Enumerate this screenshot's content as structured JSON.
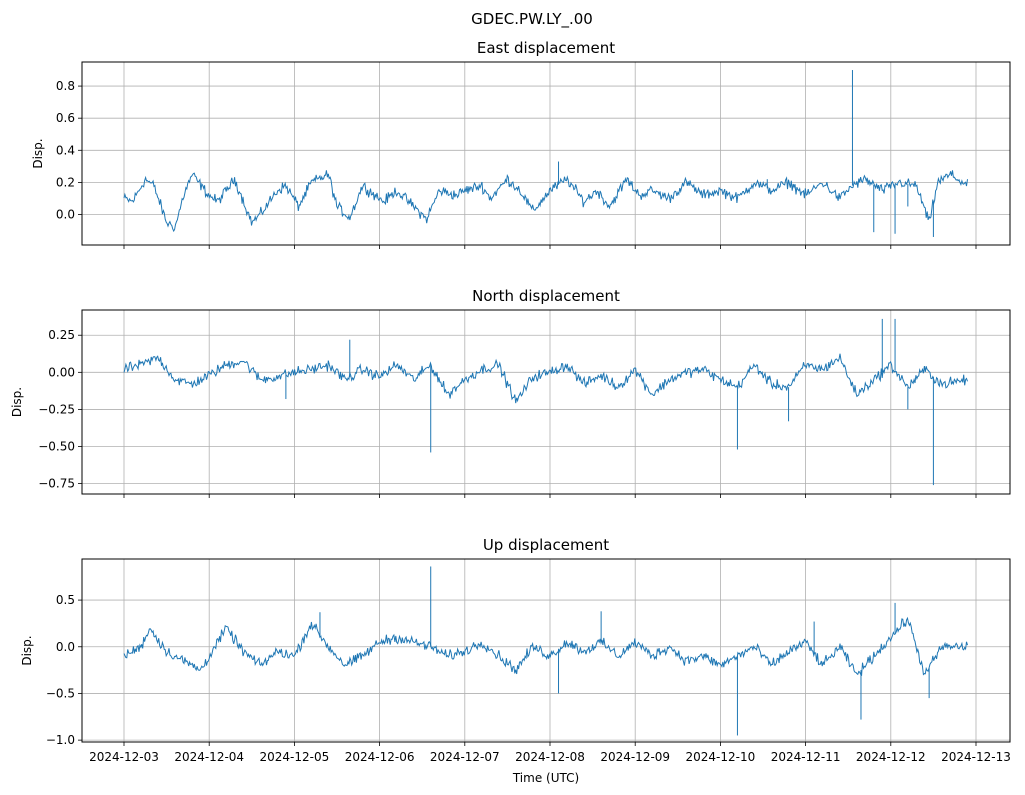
{
  "figure": {
    "suptitle": "GDEC.PW.LY_.00",
    "xlabel": "Time (UTC)",
    "line_color": "#1f77b4",
    "grid_color": "#b0b0b0"
  },
  "chart_data": [
    {
      "type": "line",
      "title": "East displacement",
      "ylabel": "Disp.",
      "xlabel": "",
      "xlim": [
        0,
        10
      ],
      "ylim": [
        -0.19,
        0.95
      ],
      "yticks": [
        0.0,
        0.2,
        0.4,
        0.6,
        0.8
      ],
      "ytick_labels": [
        "0.0",
        "0.2",
        "0.4",
        "0.6",
        "0.8"
      ],
      "grid": true,
      "series": [
        {
          "name": "East",
          "x_days": [
            0,
            0.1,
            0.25,
            0.35,
            0.5,
            0.6,
            0.7,
            0.8,
            0.95,
            1.0,
            1.1,
            1.3,
            1.5,
            1.6,
            1.8,
            1.9,
            2.05,
            2.2,
            2.4,
            2.5,
            2.65,
            2.8,
            2.95,
            3.05,
            3.2,
            3.4,
            3.55,
            3.7,
            3.9,
            4.0,
            4.2,
            4.3,
            4.5,
            4.65,
            4.8,
            5.0,
            5.2,
            5.4,
            5.55,
            5.7,
            5.9,
            6.05,
            6.2,
            6.4,
            6.6,
            6.8,
            7.0,
            7.2,
            7.4,
            7.6,
            7.8,
            8.0,
            8.2,
            8.4,
            8.55,
            8.7,
            8.9,
            9.1,
            9.3,
            9.45,
            9.55,
            9.7,
            9.9
          ],
          "values": [
            0.1,
            0.08,
            0.22,
            0.18,
            -0.05,
            -0.08,
            0.12,
            0.25,
            0.15,
            0.12,
            0.08,
            0.22,
            -0.05,
            0.0,
            0.15,
            0.18,
            0.05,
            0.2,
            0.25,
            0.05,
            -0.02,
            0.18,
            0.12,
            0.08,
            0.15,
            0.05,
            -0.03,
            0.15,
            0.12,
            0.15,
            0.18,
            0.1,
            0.22,
            0.15,
            0.02,
            0.15,
            0.22,
            0.08,
            0.15,
            0.05,
            0.22,
            0.12,
            0.15,
            0.1,
            0.2,
            0.12,
            0.15,
            0.1,
            0.2,
            0.15,
            0.2,
            0.12,
            0.2,
            0.1,
            0.18,
            0.22,
            0.15,
            0.2,
            0.18,
            -0.05,
            0.2,
            0.25,
            0.18
          ],
          "spikes": [
            [
              8.55,
              0.9
            ],
            [
              7.55,
              0.22
            ],
            [
              8.8,
              -0.11
            ],
            [
              9.05,
              -0.12
            ],
            [
              9.5,
              -0.14
            ],
            [
              9.2,
              0.05
            ],
            [
              5.1,
              0.33
            ]
          ]
        }
      ]
    },
    {
      "type": "line",
      "title": "North displacement",
      "ylabel": "Disp.",
      "xlabel": "",
      "xlim": [
        0,
        10
      ],
      "ylim": [
        -0.82,
        0.42
      ],
      "yticks": [
        -0.75,
        -0.5,
        -0.25,
        0.0,
        0.25
      ],
      "ytick_labels": [
        "−0.75",
        "−0.50",
        "−0.25",
        "0.00",
        "0.25"
      ],
      "grid": true,
      "series": [
        {
          "name": "North",
          "x_days": [
            0,
            0.2,
            0.4,
            0.6,
            0.8,
            1.0,
            1.2,
            1.4,
            1.6,
            1.8,
            2.0,
            2.2,
            2.4,
            2.6,
            2.8,
            3.0,
            3.2,
            3.4,
            3.6,
            3.8,
            4.0,
            4.2,
            4.4,
            4.6,
            4.8,
            5.0,
            5.2,
            5.4,
            5.6,
            5.8,
            6.0,
            6.2,
            6.4,
            6.6,
            6.8,
            7.0,
            7.2,
            7.4,
            7.6,
            7.8,
            8.0,
            8.2,
            8.4,
            8.6,
            8.8,
            9.0,
            9.2,
            9.4,
            9.6,
            9.9
          ],
          "values": [
            0.02,
            0.05,
            0.1,
            -0.05,
            -0.08,
            -0.02,
            0.05,
            0.08,
            -0.05,
            -0.03,
            0.0,
            0.02,
            0.05,
            -0.05,
            0.02,
            -0.03,
            0.05,
            -0.05,
            0.05,
            -0.15,
            -0.05,
            0.02,
            0.05,
            -0.2,
            -0.03,
            0.0,
            0.05,
            -0.08,
            -0.02,
            -0.1,
            0.02,
            -0.15,
            -0.05,
            0.0,
            0.02,
            -0.05,
            -0.1,
            0.05,
            -0.08,
            -0.1,
            0.05,
            0.02,
            0.1,
            -0.15,
            -0.05,
            0.05,
            -0.1,
            0.02,
            -0.08,
            -0.05
          ],
          "spikes": [
            [
              3.6,
              -0.54
            ],
            [
              7.2,
              -0.52
            ],
            [
              9.5,
              -0.76
            ],
            [
              8.9,
              0.36
            ],
            [
              9.05,
              0.36
            ],
            [
              9.2,
              -0.25
            ],
            [
              7.8,
              -0.33
            ],
            [
              2.65,
              0.22
            ],
            [
              1.9,
              -0.18
            ]
          ]
        }
      ]
    },
    {
      "type": "line",
      "title": "Up displacement",
      "ylabel": "Disp.",
      "xlabel": "Time (UTC)",
      "xlim": [
        0,
        10
      ],
      "ylim": [
        -1.02,
        0.94
      ],
      "yticks": [
        -1.0,
        -0.5,
        0.0,
        0.5
      ],
      "ytick_labels": [
        "−1.0",
        "−0.5",
        "0.0",
        "0.5"
      ],
      "grid": true,
      "x_tick_labels": [
        "2024-12-03",
        "2024-12-04",
        "2024-12-05",
        "2024-12-06",
        "2024-12-07",
        "2024-12-08",
        "2024-12-09",
        "2024-12-10",
        "2024-12-11",
        "2024-12-12",
        "2024-12-13"
      ],
      "series": [
        {
          "name": "Up",
          "x_days": [
            0,
            0.2,
            0.3,
            0.5,
            0.7,
            0.9,
            1.0,
            1.2,
            1.4,
            1.6,
            1.8,
            2.0,
            2.2,
            2.4,
            2.6,
            2.8,
            3.0,
            3.2,
            3.4,
            3.6,
            3.8,
            4.0,
            4.2,
            4.4,
            4.6,
            4.8,
            5.0,
            5.2,
            5.4,
            5.6,
            5.8,
            6.0,
            6.2,
            6.4,
            6.6,
            6.8,
            7.0,
            7.2,
            7.4,
            7.6,
            7.8,
            8.0,
            8.2,
            8.4,
            8.6,
            8.8,
            9.0,
            9.2,
            9.4,
            9.6,
            9.9
          ],
          "values": [
            -0.1,
            0.0,
            0.2,
            -0.05,
            -0.15,
            -0.25,
            -0.1,
            0.2,
            -0.05,
            -0.2,
            -0.05,
            -0.1,
            0.25,
            0.0,
            -0.2,
            -0.1,
            0.05,
            0.1,
            0.05,
            0.0,
            -0.1,
            -0.05,
            0.05,
            -0.1,
            -0.25,
            0.0,
            -0.1,
            0.05,
            -0.05,
            0.05,
            -0.1,
            0.05,
            -0.1,
            0.0,
            -0.15,
            -0.1,
            -0.2,
            -0.1,
            0.0,
            -0.2,
            -0.05,
            0.05,
            -0.2,
            0.0,
            -0.3,
            -0.1,
            0.1,
            0.3,
            -0.3,
            0.0,
            0.0
          ],
          "spikes": [
            [
              3.6,
              0.86
            ],
            [
              7.2,
              -0.95
            ],
            [
              8.65,
              -0.78
            ],
            [
              9.05,
              0.47
            ],
            [
              5.1,
              -0.5
            ],
            [
              5.6,
              0.38
            ],
            [
              2.3,
              0.37
            ],
            [
              8.1,
              0.27
            ],
            [
              9.45,
              -0.55
            ]
          ]
        }
      ]
    }
  ]
}
